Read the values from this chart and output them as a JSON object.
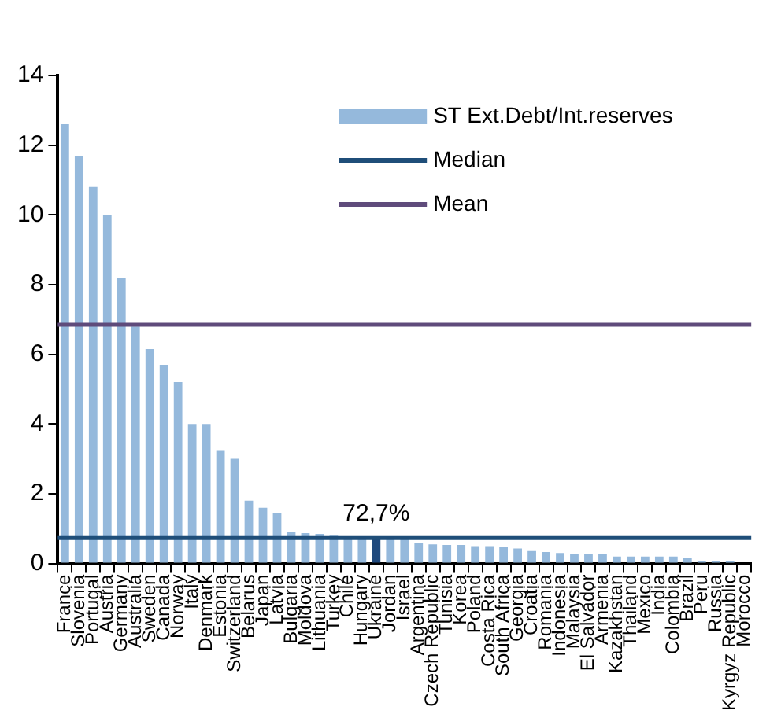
{
  "chart_data": {
    "type": "bar",
    "categories": [
      "France",
      "Slovenia",
      "Portugal",
      "Austria",
      "Germany",
      "Australia",
      "Sweden",
      "Canada",
      "Norway",
      "Italy",
      "Denmark",
      "Estonia",
      "Switzerland",
      "Belarus",
      "Japan",
      "Latvia",
      "Bulgaria",
      "Moldova",
      "Lithuania",
      "Turkey",
      "Chile",
      "Hungary",
      "Ukraine",
      "Jordan",
      "Israel",
      "Argentina",
      "Czech Republic",
      "Tunisia",
      "Korea",
      "Poland",
      "Costa Rica",
      "South Africa",
      "Georgia",
      "Croatia",
      "Romania",
      "Indonesia",
      "Malaysia",
      "El Salvador",
      "Armenia",
      "Kazakhstan",
      "Thailand",
      "Mexico",
      "India",
      "Colombia",
      "Brazil",
      "Peru",
      "Russia",
      "Kyrgyz Republic",
      "Morocco"
    ],
    "series": [
      {
        "name": "ST Ext.Debt/Int.reserves",
        "color": "#95b9dc",
        "colors": [
          "#95b9dc",
          "#95b9dc",
          "#95b9dc",
          "#95b9dc",
          "#95b9dc",
          "#95b9dc",
          "#95b9dc",
          "#95b9dc",
          "#95b9dc",
          "#95b9dc",
          "#95b9dc",
          "#95b9dc",
          "#95b9dc",
          "#95b9dc",
          "#95b9dc",
          "#95b9dc",
          "#95b9dc",
          "#95b9dc",
          "#95b9dc",
          "#95b9dc",
          "#95b9dc",
          "#95b9dc",
          "#1f497d",
          "#95b9dc",
          "#95b9dc",
          "#95b9dc",
          "#95b9dc",
          "#95b9dc",
          "#95b9dc",
          "#95b9dc",
          "#95b9dc",
          "#95b9dc",
          "#95b9dc",
          "#95b9dc",
          "#95b9dc",
          "#95b9dc",
          "#95b9dc",
          "#95b9dc",
          "#95b9dc",
          "#95b9dc",
          "#95b9dc",
          "#95b9dc",
          "#95b9dc",
          "#95b9dc",
          "#95b9dc",
          "#95b9dc",
          "#95b9dc",
          "#95b9dc",
          "#95b9dc"
        ],
        "values": [
          12.6,
          11.7,
          10.8,
          10.0,
          8.2,
          6.8,
          6.15,
          5.7,
          5.2,
          4.0,
          4.0,
          3.25,
          3.0,
          1.8,
          1.6,
          1.45,
          0.9,
          0.87,
          0.85,
          0.8,
          0.78,
          0.76,
          0.73,
          0.72,
          0.7,
          0.6,
          0.55,
          0.53,
          0.53,
          0.5,
          0.5,
          0.47,
          0.43,
          0.36,
          0.33,
          0.3,
          0.26,
          0.26,
          0.26,
          0.2,
          0.2,
          0.2,
          0.2,
          0.2,
          0.15,
          0.08,
          0.08,
          0.08,
          null
        ]
      }
    ],
    "ref_lines": [
      {
        "axis": "y",
        "value": 0.73,
        "label": "Median",
        "color": "#1f4e79"
      },
      {
        "axis": "y",
        "value": 6.85,
        "label": "Mean",
        "color": "#5f4b7b"
      }
    ],
    "annotations": [
      {
        "text": "72,7%",
        "x": "Ukraine",
        "y": 0.73
      }
    ],
    "ylim": [
      0,
      14
    ],
    "yticks": [
      0,
      2,
      4,
      6,
      8,
      10,
      12,
      14
    ],
    "grid": false,
    "legend": "top right"
  }
}
